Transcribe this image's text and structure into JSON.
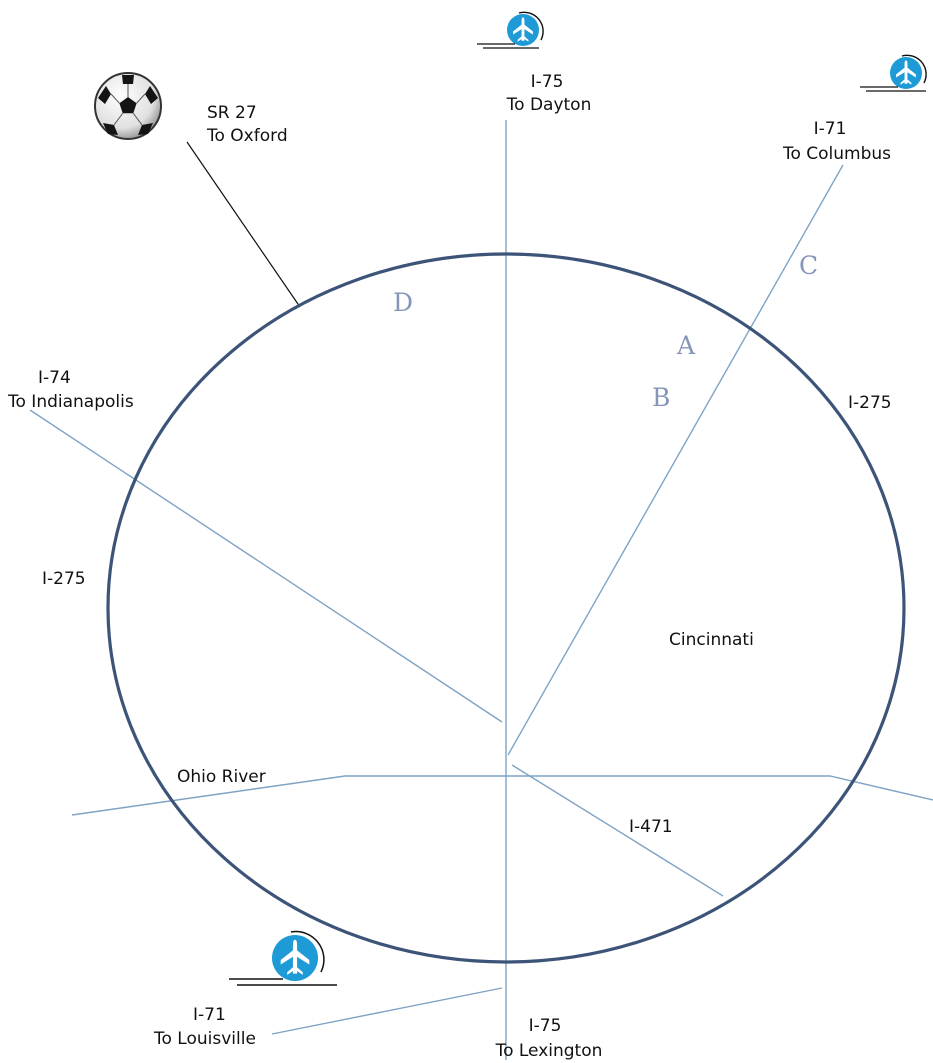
{
  "colors": {
    "ring": "#3d5479",
    "road": "#7fa3c4",
    "point_label": "#8796b8",
    "airport": "#1e9ad6",
    "text": "#111111"
  },
  "beltway": {
    "left_label": "I-275",
    "right_label": "I-275"
  },
  "highways": {
    "i75_north": {
      "line1": "I-75",
      "line2": "To Dayton"
    },
    "i71_north": {
      "line1": "I-71",
      "line2": "To Columbus"
    },
    "sr27": {
      "line1": "SR 27",
      "line2": "To Oxford"
    },
    "i74": {
      "line1": "I-74",
      "line2": "To Indianapolis"
    },
    "i471": {
      "label": "I-471"
    },
    "i71_south": {
      "line1": "I-71",
      "line2": "To Louisville"
    },
    "i75_south": {
      "line1": "I-75",
      "line2": "To Lexington"
    }
  },
  "river": {
    "label": "Ohio River"
  },
  "city": {
    "label": "Cincinnati"
  },
  "points": {
    "a": "A",
    "b": "B",
    "c": "C",
    "d": "D"
  },
  "icons": {
    "airport_dayton": "airport-icon",
    "airport_columbus": "airport-icon",
    "airport_louisville": "airport-icon",
    "stadium_oxford": "soccer-ball-icon"
  }
}
